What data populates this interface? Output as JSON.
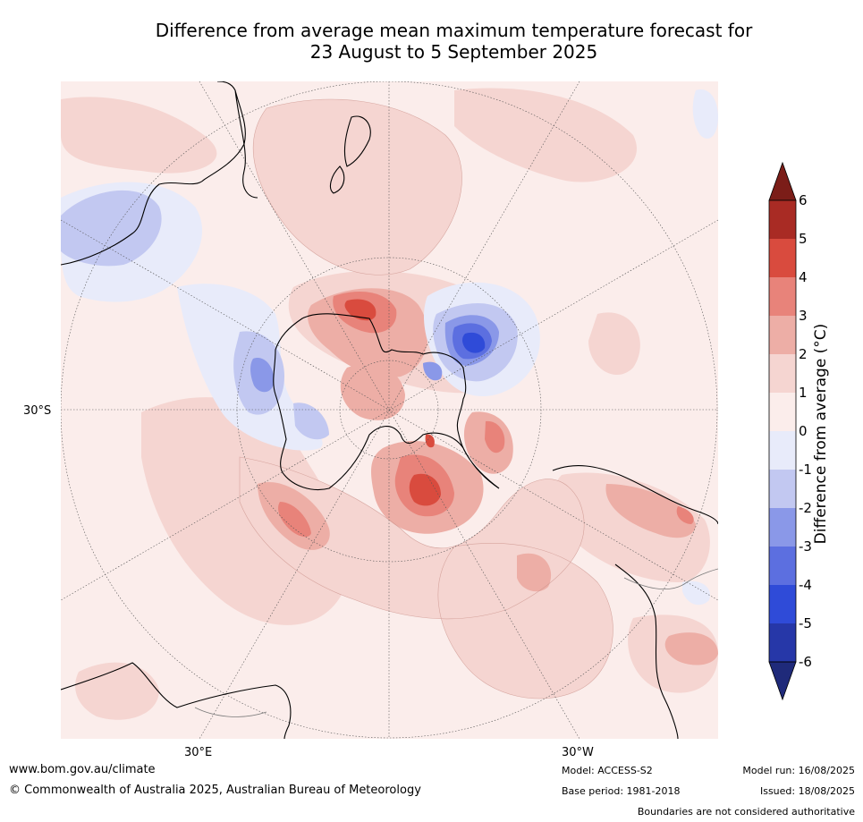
{
  "title_line1": "Difference from average mean maximum temperature forecast for",
  "title_line2": "23 August to 5 September 2025",
  "labels": {
    "lat_30s": "30°S",
    "lon_30e": "30°E",
    "lon_30w": "30°W"
  },
  "colorbar": {
    "title": "Difference from average (°C)",
    "ticks": [
      "6",
      "5",
      "4",
      "3",
      "2",
      "1",
      "0",
      "-1",
      "-2",
      "-3",
      "-4",
      "-5",
      "-6"
    ],
    "colors_warm": [
      "#7b1d18",
      "#a92b24",
      "#d94b3e",
      "#e8837a",
      "#edaea6",
      "#f5d5d1",
      "#fbedeb"
    ],
    "colors_cool": [
      "#e8ebfa",
      "#c2c8f1",
      "#8a98e8",
      "#5c6fe0",
      "#2f4bd8",
      "#2637a8",
      "#1f2a7a"
    ]
  },
  "footer": {
    "url": "www.bom.gov.au/climate",
    "copyright": "© Commonwealth of Australia 2025, Australian Bureau of Meteorology",
    "model": "Model: ACCESS-S2",
    "base_period": "Base period: 1981-2018",
    "model_run": "Model run: 16/08/2025",
    "issued": "Issued: 18/08/2025",
    "disclaimer": "Boundaries are not considered authoritative"
  }
}
